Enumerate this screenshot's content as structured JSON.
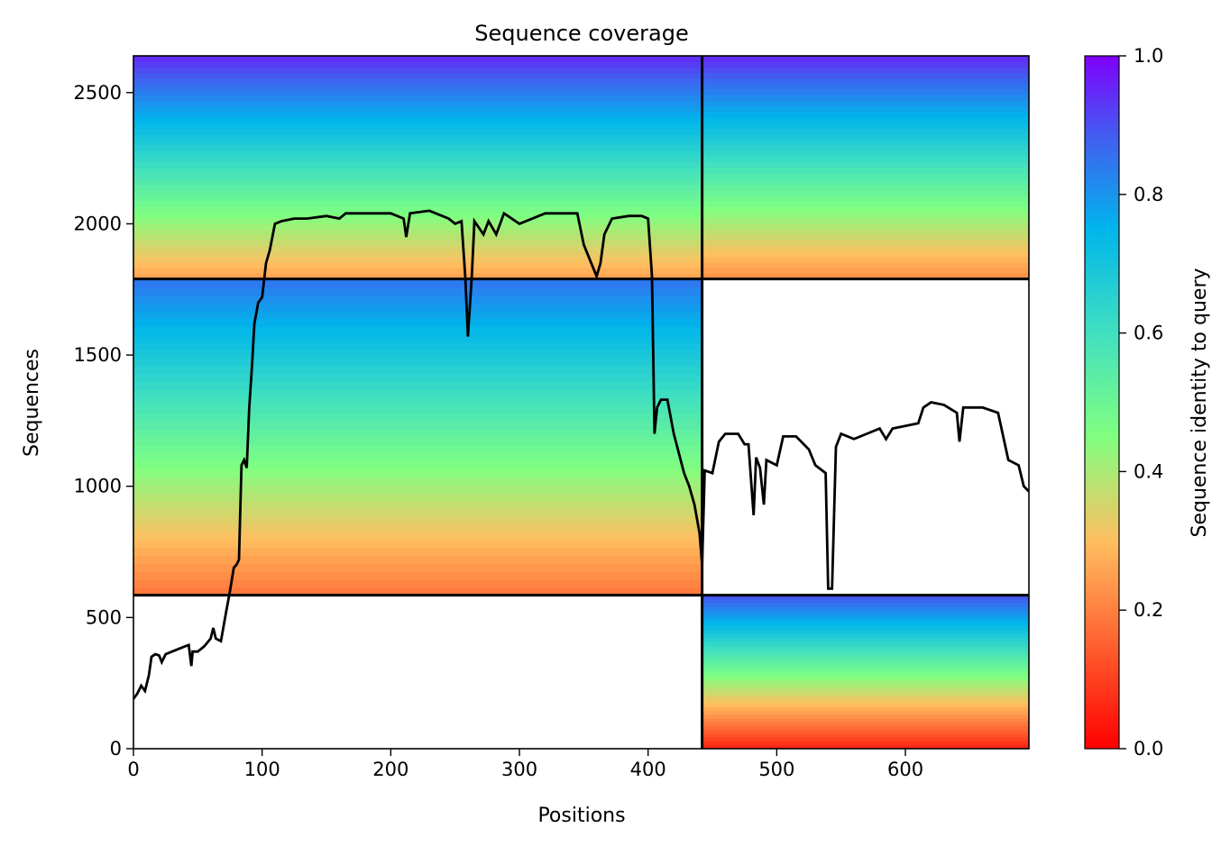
{
  "chart_data": {
    "type": "heatmap",
    "title": "Sequence coverage",
    "xlabel": "Positions",
    "ylabel": "Sequences",
    "xlim": [
      0,
      696
    ],
    "ylim": [
      0,
      2640
    ],
    "xticks": [
      0,
      100,
      200,
      300,
      400,
      500,
      600
    ],
    "yticks": [
      0,
      500,
      1000,
      1500,
      2000,
      2500
    ],
    "grid": false,
    "colorbar": {
      "label": "Sequence identity to query",
      "colormap": "rainbow_r",
      "range": [
        0,
        1
      ],
      "ticks": [
        "0.0",
        "0.2",
        "0.4",
        "0.6",
        "0.8",
        "1.0"
      ],
      "colors": [
        "#ff0000",
        "#ff8040",
        "#ffbf60",
        "#80ff80",
        "#40d0d0",
        "#00b5eb",
        "#4060f0",
        "#8000ff"
      ]
    },
    "chain_boundary_position": 442,
    "msa_group_boundaries": [
      585,
      1790
    ],
    "msa_blocks": [
      {
        "group": "paired",
        "chain": 1,
        "x": [
          0,
          442
        ],
        "rows": [
          1790,
          2640
        ],
        "identity_top": 0.95,
        "identity_bottom": 0.25
      },
      {
        "group": "paired",
        "chain": 2,
        "x": [
          442,
          696
        ],
        "rows": [
          1790,
          2640
        ],
        "identity_top": 0.95,
        "identity_bottom": 0.22
      },
      {
        "group": "unpaired",
        "chain": 1,
        "x": [
          0,
          442
        ],
        "rows": [
          585,
          1790
        ],
        "identity_top": 0.85,
        "identity_bottom": 0.18
      },
      {
        "group": "unpaired",
        "chain": 2,
        "x": [
          442,
          696
        ],
        "rows": [
          0,
          585
        ],
        "identity_top": 0.9,
        "identity_bottom": 0.05
      }
    ],
    "series": [
      {
        "type": "line",
        "color": "#000000",
        "points": [
          [
            0,
            190
          ],
          [
            3,
            210
          ],
          [
            6,
            240
          ],
          [
            9,
            220
          ],
          [
            12,
            280
          ],
          [
            14,
            350
          ],
          [
            17,
            360
          ],
          [
            20,
            355
          ],
          [
            22,
            330
          ],
          [
            25,
            360
          ],
          [
            30,
            370
          ],
          [
            35,
            380
          ],
          [
            40,
            390
          ],
          [
            43,
            395
          ],
          [
            45,
            315
          ],
          [
            46,
            370
          ],
          [
            50,
            370
          ],
          [
            55,
            390
          ],
          [
            60,
            420
          ],
          [
            62,
            460
          ],
          [
            64,
            420
          ],
          [
            68,
            410
          ],
          [
            72,
            520
          ],
          [
            75,
            600
          ],
          [
            78,
            690
          ],
          [
            80,
            700
          ],
          [
            82,
            720
          ],
          [
            84,
            1080
          ],
          [
            86,
            1100
          ],
          [
            88,
            1070
          ],
          [
            90,
            1300
          ],
          [
            92,
            1450
          ],
          [
            94,
            1620
          ],
          [
            97,
            1700
          ],
          [
            100,
            1720
          ],
          [
            103,
            1850
          ],
          [
            106,
            1900
          ],
          [
            110,
            2000
          ],
          [
            115,
            2010
          ],
          [
            125,
            2020
          ],
          [
            135,
            2020
          ],
          [
            150,
            2030
          ],
          [
            160,
            2020
          ],
          [
            165,
            2040
          ],
          [
            180,
            2040
          ],
          [
            200,
            2040
          ],
          [
            210,
            2020
          ],
          [
            212,
            1950
          ],
          [
            215,
            2040
          ],
          [
            230,
            2050
          ],
          [
            240,
            2030
          ],
          [
            245,
            2020
          ],
          [
            250,
            2000
          ],
          [
            255,
            2010
          ],
          [
            258,
            1790
          ],
          [
            260,
            1570
          ],
          [
            263,
            1800
          ],
          [
            265,
            2010
          ],
          [
            272,
            1960
          ],
          [
            276,
            2010
          ],
          [
            282,
            1960
          ],
          [
            288,
            2040
          ],
          [
            300,
            2000
          ],
          [
            320,
            2040
          ],
          [
            335,
            2040
          ],
          [
            345,
            2040
          ],
          [
            350,
            1920
          ],
          [
            355,
            1860
          ],
          [
            360,
            1800
          ],
          [
            363,
            1850
          ],
          [
            366,
            1960
          ],
          [
            372,
            2020
          ],
          [
            385,
            2030
          ],
          [
            395,
            2030
          ],
          [
            400,
            2020
          ],
          [
            403,
            1800
          ],
          [
            405,
            1200
          ],
          [
            407,
            1300
          ],
          [
            410,
            1330
          ],
          [
            415,
            1330
          ],
          [
            420,
            1200
          ],
          [
            428,
            1050
          ],
          [
            432,
            1000
          ],
          [
            436,
            930
          ],
          [
            440,
            820
          ],
          [
            442,
            700
          ],
          [
            444,
            1060
          ],
          [
            450,
            1050
          ],
          [
            455,
            1170
          ],
          [
            460,
            1200
          ],
          [
            470,
            1200
          ],
          [
            475,
            1160
          ],
          [
            478,
            1160
          ],
          [
            482,
            890
          ],
          [
            484,
            1110
          ],
          [
            487,
            1070
          ],
          [
            490,
            930
          ],
          [
            492,
            1100
          ],
          [
            500,
            1080
          ],
          [
            505,
            1190
          ],
          [
            515,
            1190
          ],
          [
            525,
            1140
          ],
          [
            530,
            1080
          ],
          [
            538,
            1050
          ],
          [
            540,
            610
          ],
          [
            543,
            610
          ],
          [
            546,
            1150
          ],
          [
            550,
            1200
          ],
          [
            560,
            1180
          ],
          [
            570,
            1200
          ],
          [
            580,
            1220
          ],
          [
            585,
            1180
          ],
          [
            590,
            1220
          ],
          [
            600,
            1230
          ],
          [
            610,
            1240
          ],
          [
            614,
            1300
          ],
          [
            620,
            1320
          ],
          [
            630,
            1310
          ],
          [
            640,
            1280
          ],
          [
            642,
            1170
          ],
          [
            645,
            1300
          ],
          [
            660,
            1300
          ],
          [
            672,
            1280
          ],
          [
            676,
            1190
          ],
          [
            680,
            1100
          ],
          [
            688,
            1080
          ],
          [
            692,
            1000
          ],
          [
            696,
            980
          ]
        ]
      }
    ]
  }
}
